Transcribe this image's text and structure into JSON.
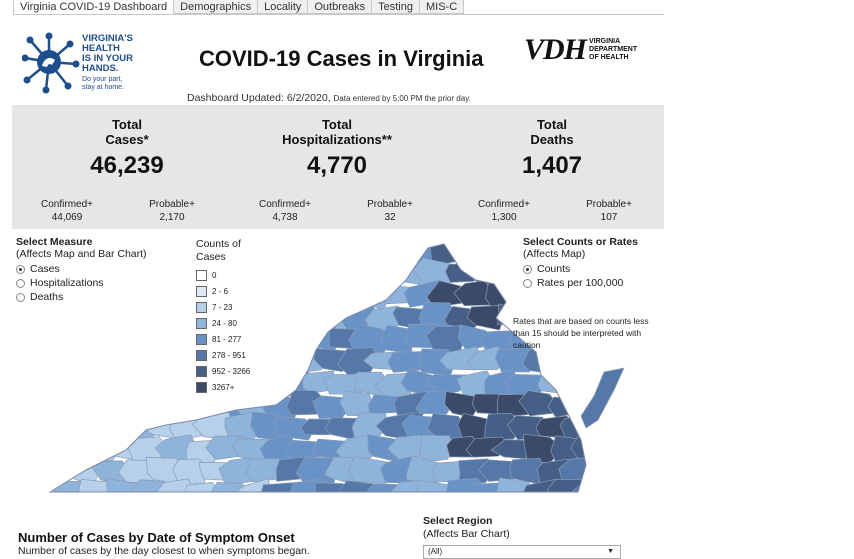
{
  "tabs": [
    "Virginia COVID-19 Dashboard",
    "Demographics",
    "Locality",
    "Outbreaks",
    "Testing",
    "MIS-C"
  ],
  "logo": {
    "lines": [
      "VIRGINIA'S",
      "HEALTH",
      "IS IN YOUR",
      "HANDS."
    ],
    "tagline": [
      "Do your part,",
      "stay at home."
    ]
  },
  "vdh": {
    "mark": "VDH",
    "lines": [
      "VIRGINIA",
      "DEPARTMENT",
      "OF HEALTH"
    ]
  },
  "title": "COVID-19 Cases in Virginia",
  "updated": {
    "main": "Dashboard Updated: 6/2/2020,",
    "note": "Data entered by 5:00 PM the prior day."
  },
  "stats": {
    "cases": {
      "title1": "Total",
      "title2": "Cases*",
      "value": "46,239",
      "confirmed_label": "Confirmed+",
      "confirmed": "44,069",
      "probable_label": "Probable+",
      "probable": "2,170"
    },
    "hosp": {
      "title1": "Total",
      "title2": "Hospitalizations**",
      "value": "4,770",
      "confirmed_label": "Confirmed+",
      "confirmed": "4,738",
      "probable_label": "Probable+",
      "probable": "32"
    },
    "deaths": {
      "title1": "Total",
      "title2": "Deaths",
      "value": "1,407",
      "confirmed_label": "Confirmed+",
      "confirmed": "1,300",
      "probable_label": "Probable+",
      "probable": "107"
    }
  },
  "measure": {
    "title": "Select Measure",
    "subtitle": "(Affects Map and Bar Chart)",
    "options": [
      "Cases",
      "Hospitalizations",
      "Deaths"
    ],
    "selected": "Cases"
  },
  "legend": {
    "title1": "Counts of",
    "title2": "Cases",
    "items": [
      {
        "label": "0",
        "color": "#ffffff"
      },
      {
        "label": "2 - 6",
        "color": "#dbe8f5"
      },
      {
        "label": "7 - 23",
        "color": "#b7d0ea"
      },
      {
        "label": "24 - 80",
        "color": "#8fb4dc"
      },
      {
        "label": "81 - 277",
        "color": "#6993c7"
      },
      {
        "label": "278 - 951",
        "color": "#5578a8"
      },
      {
        "label": "952 - 3266",
        "color": "#465f86"
      },
      {
        "label": "3267+",
        "color": "#3a4a68"
      }
    ]
  },
  "counts_rates": {
    "title": "Select Counts or Rates",
    "subtitle": "(Affects Map)",
    "options": [
      "Counts",
      "Rates per 100,000"
    ],
    "selected": "Counts"
  },
  "rates_note": "Rates that are based on counts less than 15 should be interpreted with caution",
  "bar_section": {
    "title": "Number of Cases by Date of Symptom Onset",
    "subtitle": "Number of cases by the day closest to when symptoms began."
  },
  "region": {
    "title": "Select Region",
    "subtitle": "(Affects Bar Chart)",
    "selected": "(All)"
  }
}
